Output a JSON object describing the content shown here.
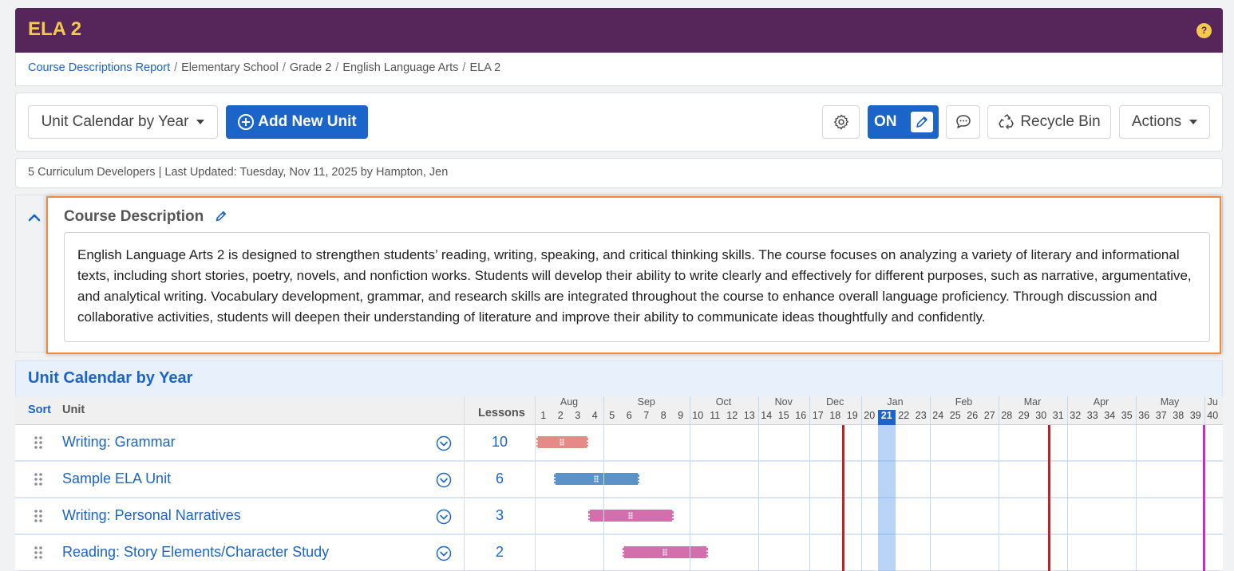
{
  "header": {
    "title": "ELA 2",
    "help_label": "?"
  },
  "breadcrumb": {
    "items": [
      "Course Descriptions Report",
      "Elementary School",
      "Grade 2",
      "English Language Arts",
      "ELA 2"
    ],
    "separator": "/"
  },
  "toolbar": {
    "view_select": "Unit Calendar by Year",
    "add_unit": "Add New Unit",
    "edit_toggle": "ON",
    "recycle_bin": "Recycle Bin",
    "actions": "Actions"
  },
  "info": {
    "text": "5 Curriculum Developers | Last Updated: Tuesday, Nov 11, 2025 by Hampton, Jen"
  },
  "course_description": {
    "title": "Course Description",
    "text": "English Language Arts 2 is designed to strengthen students’ reading, writing, speaking, and critical thinking skills. The course focuses on analyzing a variety of literary and informational texts, including short stories, poetry, novels, and nonfiction works. Students will develop their ability to write clearly and effectively for different purposes, such as narrative, argumentative, and analytical writing. Vocabulary development, grammar, and research skills are integrated throughout the course to enhance overall language proficiency. Through discussion and collaborative activities, students will deepen their understanding of literature and improve their ability to communicate ideas thoughtfully and confidently."
  },
  "calendar": {
    "title": "Unit Calendar by Year",
    "columns": {
      "sort": "Sort",
      "unit": "Unit",
      "lessons": "Lessons"
    },
    "months": [
      "Aug",
      "Sep",
      "Oct",
      "Nov",
      "Dec",
      "Jan",
      "Feb",
      "Mar",
      "Apr",
      "May",
      "Ju"
    ],
    "month_spans": [
      4,
      5,
      4,
      3,
      3,
      4,
      4,
      4,
      4,
      4,
      1
    ],
    "weeks": [
      "1",
      "2",
      "3",
      "4",
      "5",
      "6",
      "7",
      "8",
      "9",
      "10",
      "11",
      "12",
      "13",
      "14",
      "15",
      "16",
      "17",
      "18",
      "19",
      "20",
      "21",
      "22",
      "23",
      "24",
      "25",
      "26",
      "27",
      "28",
      "29",
      "30",
      "31",
      "32",
      "33",
      "34",
      "35",
      "36",
      "37",
      "38",
      "39",
      "40"
    ],
    "current_week": 21,
    "markers": [
      {
        "week": 18,
        "color": "#e0141b"
      },
      {
        "week": 30,
        "color": "#e0141b"
      },
      {
        "week": 39,
        "color": "#e21ec9"
      }
    ],
    "units": [
      {
        "name": "Writing: Grammar",
        "lessons": "10",
        "start_week": 1,
        "end_week": 3,
        "color": "#e58a86"
      },
      {
        "name": "Sample ELA Unit",
        "lessons": "6",
        "start_week": 2,
        "end_week": 6,
        "color": "#5b93c9"
      },
      {
        "name": "Writing: Personal Narratives",
        "lessons": "3",
        "start_week": 4,
        "end_week": 8,
        "color": "#d46fae"
      },
      {
        "name": "Reading: Story Elements/Character Study",
        "lessons": "2",
        "start_week": 6,
        "end_week": 10,
        "color": "#d46fae"
      }
    ]
  }
}
